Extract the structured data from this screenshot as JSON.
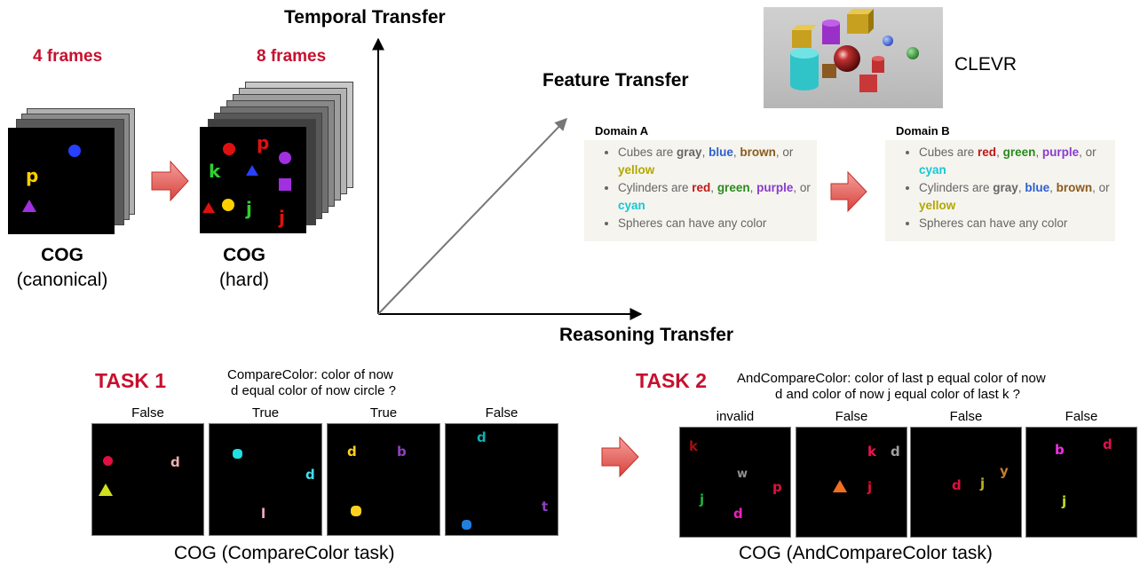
{
  "axes": {
    "temporal": "Temporal Transfer",
    "feature": "Feature Transfer",
    "reasoning": "Reasoning Transfer"
  },
  "cog_canonical": {
    "frames_label": "4 frames",
    "title": "COG",
    "subtitle": "(canonical)",
    "letters": [
      "p"
    ]
  },
  "cog_hard": {
    "frames_label": "8 frames",
    "title": "COG",
    "subtitle": "(hard)",
    "letters": [
      "p",
      "k",
      "j",
      "j"
    ]
  },
  "clevr": {
    "label": "CLEVR"
  },
  "domain_a": {
    "title": "Domain A",
    "cubes_prefix": "Cubes are ",
    "cubes_c1": "gray",
    "sep1": ", ",
    "cubes_c2": "blue",
    "sep2": ", ",
    "cubes_c3": "brown",
    "sep3": ", or ",
    "cubes_c4": "yellow",
    "cyl_prefix": "Cylinders are ",
    "cyl_c1": "red",
    "sep4": ", ",
    "cyl_c2": "green",
    "sep5": ", ",
    "cyl_c3": "purple",
    "sep6": ", or ",
    "cyl_c4": "cyan",
    "spheres": "Spheres can have any color"
  },
  "domain_b": {
    "title": "Domain B",
    "cubes_prefix": "Cubes are ",
    "cubes_c1": "red",
    "sep1": ", ",
    "cubes_c2": "green",
    "sep2": ", ",
    "cubes_c3": "purple",
    "sep3": ", or ",
    "cubes_c4": "cyan",
    "cyl_prefix": "Cylinders are ",
    "cyl_c1": "gray",
    "sep4": ", ",
    "cyl_c2": "blue",
    "sep5": ", ",
    "cyl_c3": "brown",
    "sep6": ", or ",
    "cyl_c4": "yellow",
    "spheres": "Spheres can have any color"
  },
  "colors": {
    "gray": "#666666",
    "blue": "#2e5fd0",
    "brown": "#8a5a1e",
    "yellow": "#b3a800",
    "red": "#c01818",
    "green": "#2a8a1e",
    "purple": "#8a3ad0",
    "cyan": "#17c7d4",
    "accent_red": "#c8102e"
  },
  "task1": {
    "label": "TASK 1",
    "question_line1": "CompareColor: color of now",
    "question_line2": "d equal color of now circle ?",
    "answers": [
      "False",
      "True",
      "True",
      "False"
    ],
    "frame_letters": [
      "d",
      "d",
      "l",
      "d",
      "b",
      "d",
      "t"
    ],
    "caption": "COG (CompareColor task)"
  },
  "task2": {
    "label": "TASK 2",
    "question_line1": "AndCompareColor: color of last p equal color of now",
    "question_line2": "d and color of now j equal color of last k ?",
    "answers": [
      "invalid",
      "False",
      "False",
      "False"
    ],
    "frame_letters": [
      "k",
      "w",
      "j",
      "p",
      "d",
      "k",
      "d",
      "j",
      "d",
      "j",
      "y",
      "b",
      "d",
      "j"
    ],
    "caption": "COG (AndCompareColor task)"
  }
}
